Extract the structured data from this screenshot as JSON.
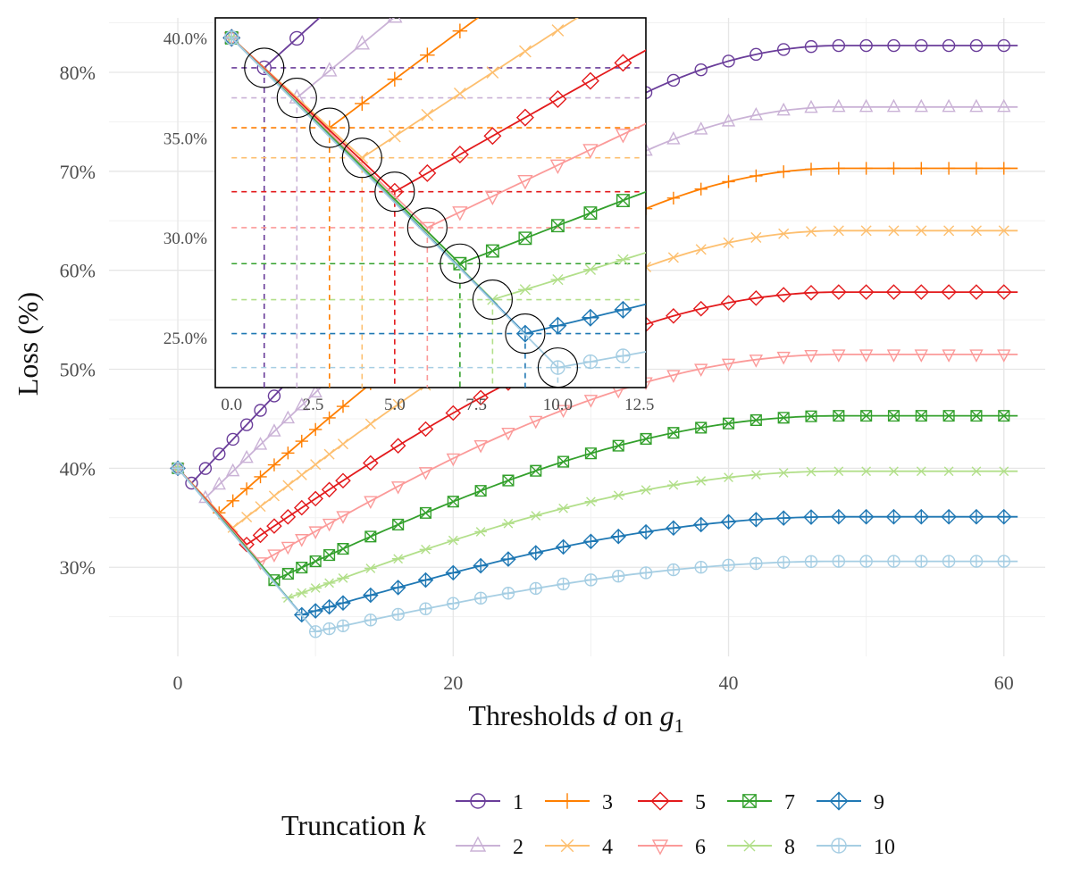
{
  "chart_data": {
    "type": "line",
    "title": "",
    "xlabel_prefix": "Thresholds ",
    "xlabel_var": "d",
    "xlabel_mid": " on ",
    "xlabel_g": "g",
    "xlabel_sub": "1",
    "ylabel": "Loss (%)",
    "xlim": [
      -5,
      63
    ],
    "ylim": [
      21,
      85.5
    ],
    "xticks": [
      0,
      20,
      40,
      60
    ],
    "xtick_labels": [
      "0",
      "20",
      "40",
      "60"
    ],
    "yticks": [
      30,
      40,
      50,
      60,
      70,
      80
    ],
    "ytick_labels": [
      "30%",
      "40%",
      "50%",
      "60%",
      "70%",
      "80%"
    ],
    "grid": true,
    "legend": {
      "title_prefix": "Truncation ",
      "title_var": "k",
      "position": "bottom"
    },
    "series": [
      {
        "name": "1",
        "color": "#6a3d9a",
        "marker": "circle",
        "start": 40,
        "min_x": 1,
        "min_y": 38.5,
        "plateau": 82.7
      },
      {
        "name": "2",
        "color": "#cab2d6",
        "marker": "triangle-up",
        "start": 40,
        "min_x": 2,
        "min_y": 37.0,
        "plateau": 76.5
      },
      {
        "name": "3",
        "color": "#ff7f00",
        "marker": "plus",
        "start": 40,
        "min_x": 3,
        "min_y": 35.5,
        "plateau": 70.3
      },
      {
        "name": "4",
        "color": "#fdbf6f",
        "marker": "cross",
        "start": 40,
        "min_x": 4,
        "min_y": 34.0,
        "plateau": 64.0
      },
      {
        "name": "5",
        "color": "#e31a1c",
        "marker": "diamond",
        "start": 40,
        "min_x": 5,
        "min_y": 32.3,
        "plateau": 57.8
      },
      {
        "name": "6",
        "color": "#fb9a99",
        "marker": "triangle-down",
        "start": 40,
        "min_x": 6,
        "min_y": 30.5,
        "plateau": 51.5
      },
      {
        "name": "7",
        "color": "#33a02c",
        "marker": "square-x",
        "start": 40,
        "min_x": 7,
        "min_y": 28.7,
        "plateau": 45.3
      },
      {
        "name": "8",
        "color": "#b2df8a",
        "marker": "asterisk",
        "start": 40,
        "min_x": 8,
        "min_y": 26.9,
        "plateau": 39.7
      },
      {
        "name": "9",
        "color": "#1f78b4",
        "marker": "diamond-plus",
        "start": 40,
        "min_x": 9,
        "min_y": 25.2,
        "plateau": 35.1
      },
      {
        "name": "10",
        "color": "#a6cee3",
        "marker": "circle-plus",
        "start": 40,
        "min_x": 10,
        "min_y": 23.5,
        "plateau": 30.6
      }
    ],
    "inset": {
      "xlim": [
        -0.5,
        12.7
      ],
      "ylim": [
        22.5,
        41.0
      ],
      "xticks": [
        0,
        2.5,
        5,
        7.5,
        10,
        12.5
      ],
      "xtick_labels": [
        "0.0",
        "2.5",
        "5.0",
        "7.5",
        "10.0",
        "12.5"
      ],
      "yticks": [
        25,
        30,
        35,
        40
      ],
      "ytick_labels": [
        "25.0%",
        "30.0%",
        "35.0%",
        "40.0%"
      ],
      "highlighted_minima": "circled"
    }
  }
}
